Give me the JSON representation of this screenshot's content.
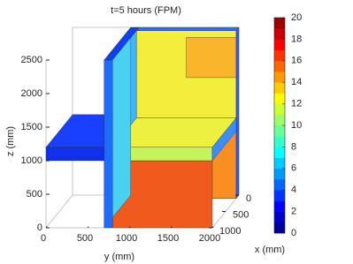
{
  "chart_data": {
    "type": "surface3d",
    "title": "t=5 hours (FPM)",
    "xlabel": "x (mm)",
    "ylabel": "y (mm)",
    "zlabel": "z (mm)",
    "xlim": [
      0,
      1000
    ],
    "xticks": [
      0,
      500,
      1000
    ],
    "ylim": [
      0,
      2000
    ],
    "yticks": [
      0,
      500,
      1000,
      1500,
      2000
    ],
    "zlim": [
      0,
      2500
    ],
    "zticks": [
      0,
      500,
      1000,
      1500,
      2000,
      2500
    ],
    "clim": [
      0,
      20
    ],
    "cticks": [
      0,
      2,
      4,
      6,
      8,
      10,
      12,
      14,
      16,
      18,
      20
    ],
    "colormap": "jet"
  }
}
